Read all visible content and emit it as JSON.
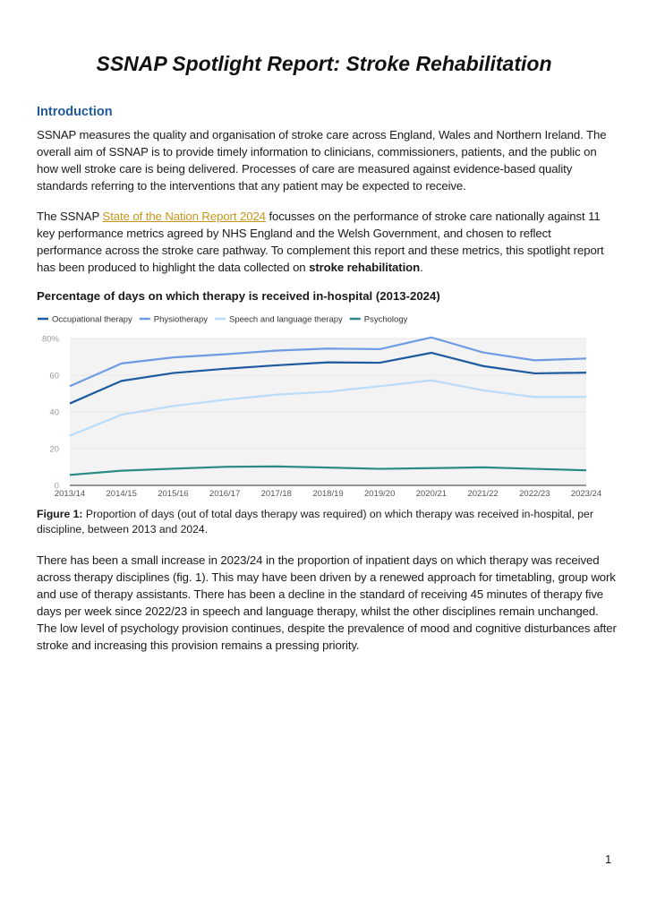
{
  "title": "SSNAP Spotlight Report: Stroke Rehabilitation",
  "intro": {
    "heading": "Introduction",
    "p1": "SSNAP measures the quality and organisation of stroke care across England, Wales and Northern Ireland. The overall aim of SSNAP is to provide timely information to clinicians, commissioners, patients, and the public on how well stroke care is being delivered. Processes of care are measured against evidence-based quality standards referring to the interventions that any patient may be expected to receive.",
    "p2_before": "The SSNAP ",
    "p2_link": "State of the Nation Report 2024",
    "p2_middle": " focusses on the performance of stroke care nationally against 11 key performance metrics agreed by NHS England and the Welsh Government, and chosen to reflect performance across the stroke care pathway. To complement this report and these metrics, this spotlight report has been produced to highlight the data collected on ",
    "p2_bold": "stroke rehabilitation",
    "p2_after": "."
  },
  "figure": {
    "heading": "Percentage of days on which therapy is received in-hospital (2013-2024)",
    "caption_label": "Figure 1:",
    "caption_text": " Proportion of days (out of total days therapy was required) on which therapy was received in-hospital, per discipline, between 2013 and 2024."
  },
  "p3": "There has been a small increase in 2023/24 in the proportion of inpatient days on which therapy was received across therapy disciplines (fig. 1). This may have been driven by a renewed approach for timetabling, group work and use of therapy assistants. There has been a decline in the standard of receiving 45 minutes of therapy five days per week since 2022/23 in speech and language therapy, whilst the other disciplines remain unchanged. The low level of psychology provision continues, despite the prevalence of mood and cognitive disturbances after stroke and increasing this provision remains a pressing priority.",
  "page_number": "1",
  "chart_data": {
    "type": "line",
    "title": "Percentage of days on which therapy is received in-hospital (2013-2024)",
    "xlabel": "",
    "ylabel": "",
    "categories": [
      "2013/14",
      "2014/15",
      "2015/16",
      "2016/17",
      "2017/18",
      "2018/19",
      "2019/20",
      "2020/21",
      "2021/22",
      "2022/23",
      "2023/24"
    ],
    "ylim": [
      0,
      80
    ],
    "yticks": [
      "0",
      "20",
      "40",
      "60",
      "80%"
    ],
    "ytick_values": [
      0,
      20,
      40,
      60,
      80
    ],
    "grid": true,
    "legend": "top-left",
    "series": [
      {
        "name": "Occupational therapy",
        "color": "#1d5a9e",
        "values": [
          44.6,
          56.9,
          61.2,
          63.5,
          65.4,
          67.0,
          66.8,
          72.2,
          65.0,
          61.0,
          61.4
        ]
      },
      {
        "name": "Physiotherapy",
        "color": "#6f9be3",
        "values": [
          54.0,
          66.4,
          69.7,
          71.4,
          73.4,
          74.5,
          74.2,
          80.6,
          72.4,
          68.1,
          69.1
        ]
      },
      {
        "name": "Speech and language therapy",
        "color": "#b8dcfa",
        "values": [
          27.0,
          38.5,
          43.2,
          46.6,
          49.4,
          51.0,
          54.0,
          57.2,
          51.8,
          48.1,
          48.2
        ]
      },
      {
        "name": "Psychology",
        "color": "#2a8a84",
        "values": [
          5.7,
          8.0,
          9.1,
          10.1,
          10.3,
          9.7,
          9.0,
          9.4,
          9.8,
          9.0,
          8.2
        ]
      }
    ]
  }
}
